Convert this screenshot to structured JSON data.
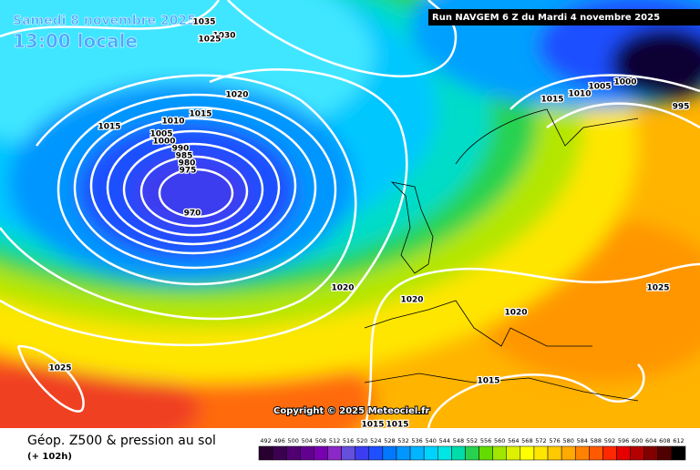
{
  "header": {
    "date": "Samedi 8 novembre 2025",
    "time": "13:00 locale",
    "run": "Run NAVGEM 6 Z du Mardi 4 novembre 2025"
  },
  "map": {
    "copyright": "Copyright © 2025 Meteociel.fr",
    "isobar_labels": [
      "1035",
      "1030",
      "1025",
      "1020",
      "1015",
      "1010",
      "1015",
      "1005",
      "1000",
      "990",
      "985",
      "980",
      "975",
      "970",
      "1020",
      "1020",
      "1020",
      "1025",
      "1025",
      "1015",
      "1015",
      "1015",
      "1015",
      "1010",
      "1005",
      "1000",
      "995"
    ]
  },
  "footer": {
    "title": "Géop. Z500 & pression au sol",
    "subtitle": "(+ 102h)",
    "scale": {
      "values": [
        492,
        496,
        500,
        504,
        508,
        512,
        516,
        520,
        524,
        528,
        532,
        536,
        540,
        544,
        548,
        552,
        556,
        560,
        564,
        568,
        572,
        576,
        580,
        584,
        588,
        592,
        596,
        600,
        604,
        608,
        612
      ],
      "colors": [
        "#280030",
        "#3c0050",
        "#500070",
        "#640090",
        "#7800b0",
        "#8c28c8",
        "#6450dc",
        "#3c3cf0",
        "#1e50ff",
        "#0078ff",
        "#0096ff",
        "#00b4ff",
        "#00d2ff",
        "#00e6e6",
        "#00dcaa",
        "#28d250",
        "#64dc00",
        "#a0e600",
        "#dcf000",
        "#ffff00",
        "#ffe600",
        "#ffc800",
        "#ffaa00",
        "#ff8200",
        "#ff5a00",
        "#ff2800",
        "#e60000",
        "#b40000",
        "#820000",
        "#500000",
        "#000000"
      ]
    }
  }
}
